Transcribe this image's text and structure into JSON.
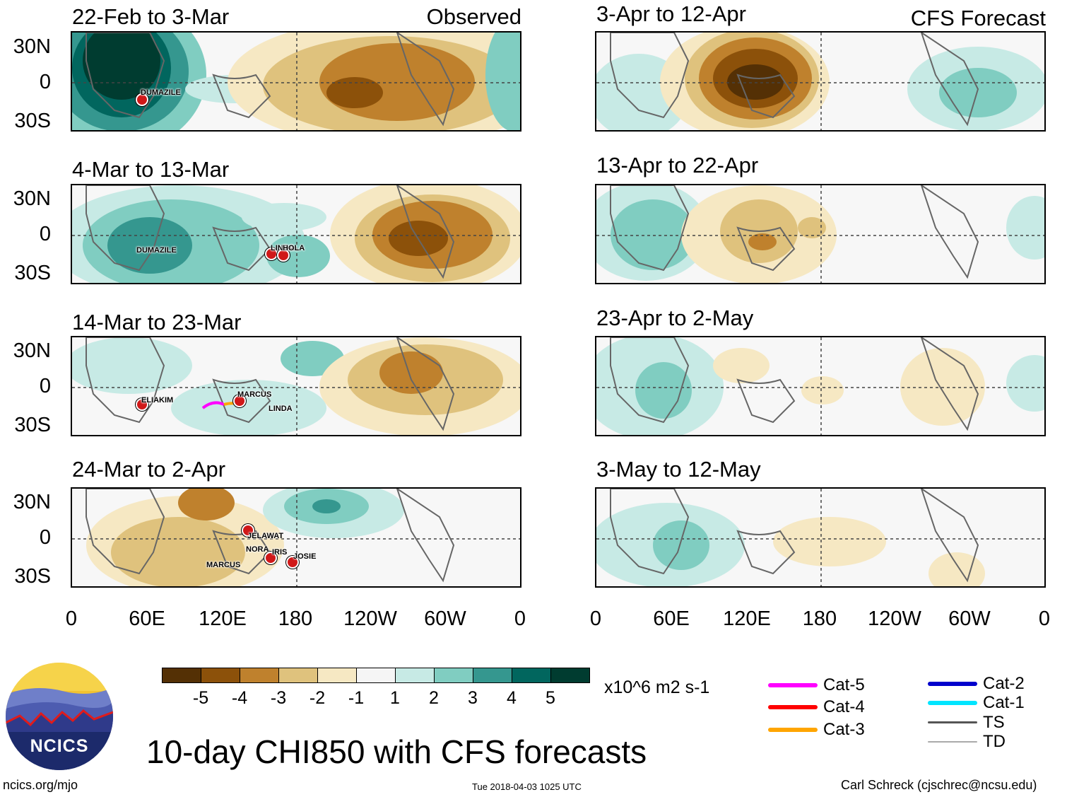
{
  "panels_left": [
    {
      "period": "22-Feb to 3-Mar",
      "corner_label": "Observed"
    },
    {
      "period": "4-Mar to 13-Mar",
      "corner_label": ""
    },
    {
      "period": "14-Mar to 23-Mar",
      "corner_label": ""
    },
    {
      "period": "24-Mar to 2-Apr",
      "corner_label": ""
    }
  ],
  "panels_right": [
    {
      "period": "3-Apr to 12-Apr",
      "corner_label": "CFS Forecast"
    },
    {
      "period": "13-Apr to 22-Apr",
      "corner_label": ""
    },
    {
      "period": "23-Apr to 2-May",
      "corner_label": ""
    },
    {
      "period": "3-May to 12-May",
      "corner_label": ""
    }
  ],
  "lat_labels": [
    "30N",
    "0",
    "30S"
  ],
  "lon_labels": [
    "0",
    "60E",
    "120E",
    "180",
    "120W",
    "60W",
    "0"
  ],
  "storms": {
    "p1": [
      "DUMAZILE"
    ],
    "p2": [
      "DUMAZILE",
      "LINDA",
      "HOLA"
    ],
    "p3": [
      "ELIAKIM",
      "MARCUS",
      "LINDA"
    ],
    "p4": [
      "JELAWAT",
      "NORA",
      "IRIS",
      "JOSIE",
      "MARCUS"
    ]
  },
  "colorbar": {
    "ticks": [
      "-5",
      "-4",
      "-3",
      "-2",
      "-1",
      "1",
      "2",
      "3",
      "4",
      "5"
    ],
    "colors": [
      "#543005",
      "#8c510a",
      "#bf812d",
      "#dfc27d",
      "#f6e8c3",
      "#f5f5f5",
      "#c7eae5",
      "#80cdc1",
      "#35978f",
      "#01665e",
      "#003c30"
    ],
    "units": "x10^6 m2 s-1"
  },
  "legend": [
    {
      "label": "Cat-5",
      "color": "#ff00ff"
    },
    {
      "label": "Cat-4",
      "color": "#ff0000"
    },
    {
      "label": "Cat-3",
      "color": "#ffa500"
    },
    {
      "label": "Cat-2",
      "color": "#0000cc"
    },
    {
      "label": "Cat-1",
      "color": "#00e5ff"
    },
    {
      "label": "TS",
      "color": "#555555"
    },
    {
      "label": "TD",
      "color": "#aaaaaa"
    }
  ],
  "title": "10-day CHI850 with CFS forecasts",
  "logo_text": "NCICS",
  "footer": {
    "website": "ncics.org/mjo",
    "timestamp": "Tue 2018-04-03 1025 UTC",
    "author": "Carl Schreck (cjschrec@ncsu.edu)"
  }
}
